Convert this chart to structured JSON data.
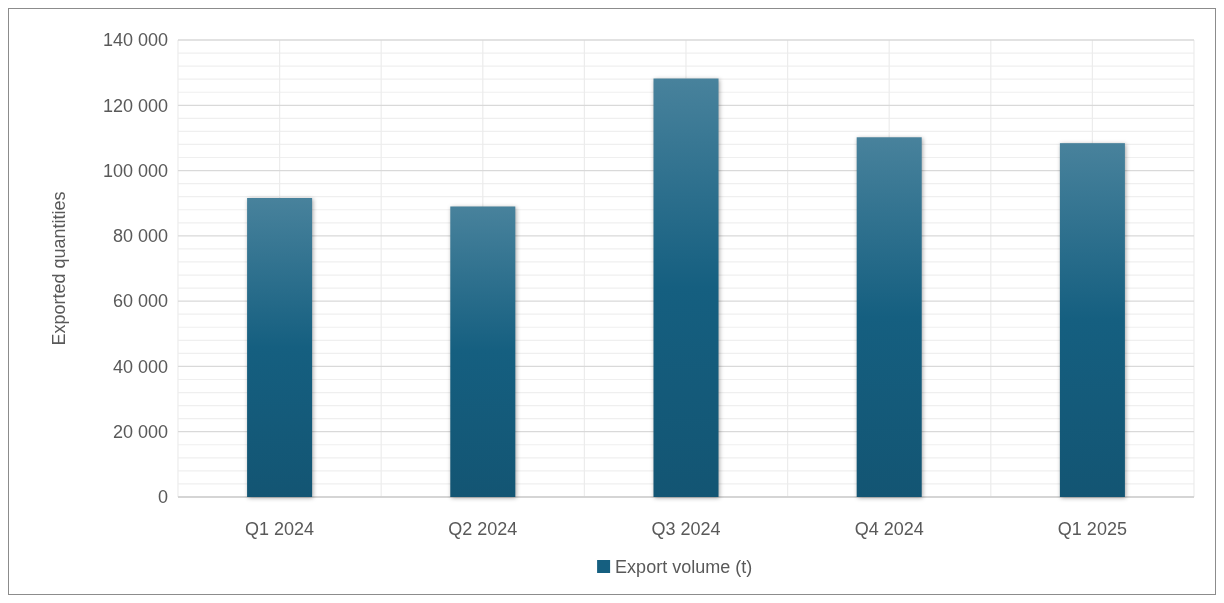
{
  "chart_data": {
    "type": "bar",
    "ylabel": "Exported quantities",
    "categories": [
      "Q1 2024",
      "Q2 2024",
      "Q3 2024",
      "Q4 2024",
      "Q1 2025"
    ],
    "series": [
      {
        "name": "Export volume (t)",
        "color": "#155f80",
        "values": [
          91600,
          89000,
          128200,
          110200,
          108400
        ]
      }
    ],
    "ylim": [
      0,
      140000
    ],
    "yticks": [
      0,
      {
        "value": 20000,
        "label": "20 000"
      },
      {
        "value": 40000,
        "label": "40 000"
      },
      {
        "value": 60000,
        "label": "60 000"
      },
      {
        "value": 80000,
        "label": "80 000"
      },
      {
        "value": 100000,
        "label": "100 000"
      },
      {
        "value": 120000,
        "label": "120 000"
      },
      {
        "value": 140000,
        "label": "140 000"
      }
    ],
    "grid": true,
    "legend": "bottom"
  }
}
